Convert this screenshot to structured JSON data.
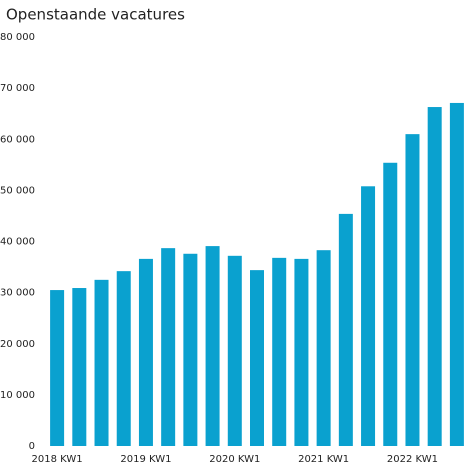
{
  "chart_data": {
    "type": "bar",
    "title": "Openstaande vacatures",
    "categories": [
      "2018 KW1",
      null,
      null,
      null,
      "2019 KW1",
      null,
      null,
      null,
      "2020 KW1",
      null,
      null,
      null,
      "2021 KW1",
      null,
      null,
      null,
      "2022 KW1",
      null,
      null
    ],
    "values": [
      30500,
      30900,
      32500,
      34200,
      36600,
      38700,
      37600,
      39100,
      37200,
      34400,
      36800,
      36600,
      38300,
      45400,
      50800,
      55400,
      61000,
      66300,
      67100
    ],
    "color": "#0aa1cf",
    "ylim": [
      0,
      80000
    ],
    "yticks": [
      {
        "value": 0,
        "label": "0"
      },
      {
        "value": 10000,
        "label": "10 000"
      },
      {
        "value": 20000,
        "label": "20 000"
      },
      {
        "value": 30000,
        "label": "30 000"
      },
      {
        "value": 40000,
        "label": "40 000"
      },
      {
        "value": 50000,
        "label": "50 000"
      },
      {
        "value": 60000,
        "label": "60 000"
      },
      {
        "value": 70000,
        "label": "70 000"
      },
      {
        "value": 80000,
        "label": "80 000"
      }
    ],
    "grid": true
  }
}
